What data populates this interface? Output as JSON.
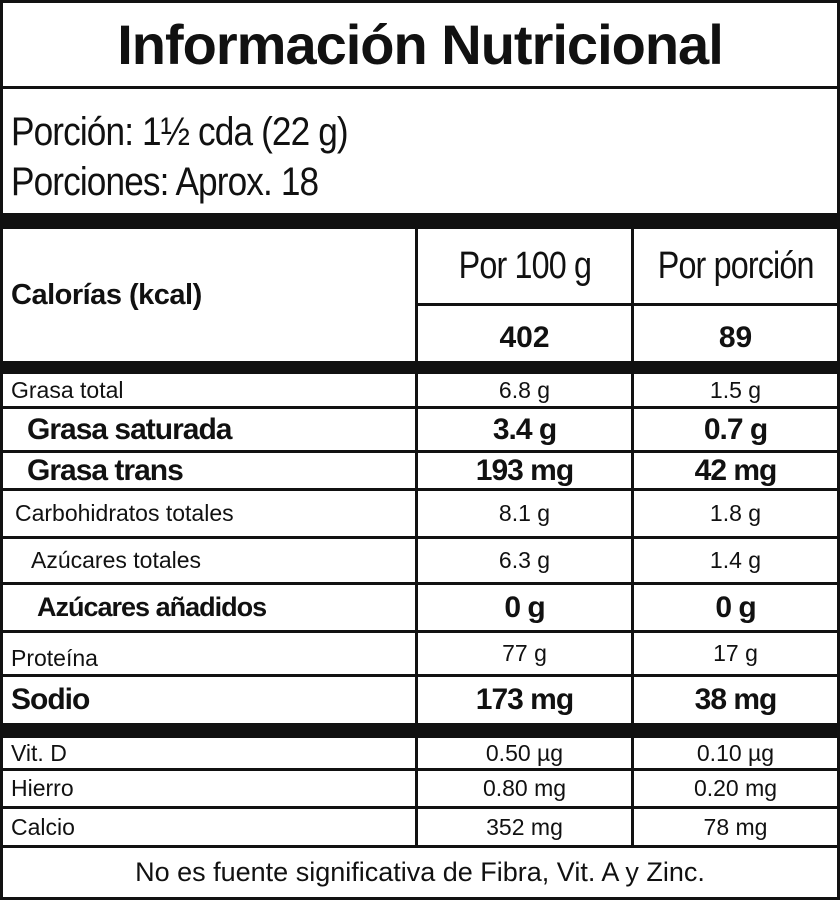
{
  "title": "Información Nutricional",
  "serving": {
    "size": "Porción: 1½ cda (22 g)",
    "count": "Porciones: Aprox. 18"
  },
  "header": {
    "calories_label": "Calorías (kcal)",
    "col_100g": "Por 100 g",
    "col_portion": "Por porción",
    "calories_100g": "402",
    "calories_portion": "89"
  },
  "nutrients": [
    {
      "name": "Grasa total",
      "per100": "6.8 g",
      "portion": "1.5 g"
    },
    {
      "name": "Grasa saturada",
      "per100": "3.4 g",
      "portion": "0.7 g"
    },
    {
      "name": "Grasa trans",
      "per100": "193 mg",
      "portion": "42 mg"
    },
    {
      "name": "Carbohidratos totales",
      "per100": "8.1 g",
      "portion": "1.8 g"
    },
    {
      "name": "Azúcares totales",
      "per100": "6.3 g",
      "portion": "1.4 g"
    },
    {
      "name": "Azúcares añadidos",
      "per100": "0 g",
      "portion": "0 g"
    },
    {
      "name": "Proteína",
      "per100": "77 g",
      "portion": "17 g"
    },
    {
      "name": "Sodio",
      "per100": "173 mg",
      "portion": "38 mg"
    }
  ],
  "micros": [
    {
      "name": "Vit. D",
      "per100": "0.50 µg",
      "portion": "0.10 µg"
    },
    {
      "name": "Hierro",
      "per100": "0.80 mg",
      "portion": "0.20 mg"
    },
    {
      "name": "Calcio",
      "per100": "352 mg",
      "portion": "78 mg"
    }
  ],
  "footer": "No es fuente significativa de Fibra, Vit. A y Zinc."
}
